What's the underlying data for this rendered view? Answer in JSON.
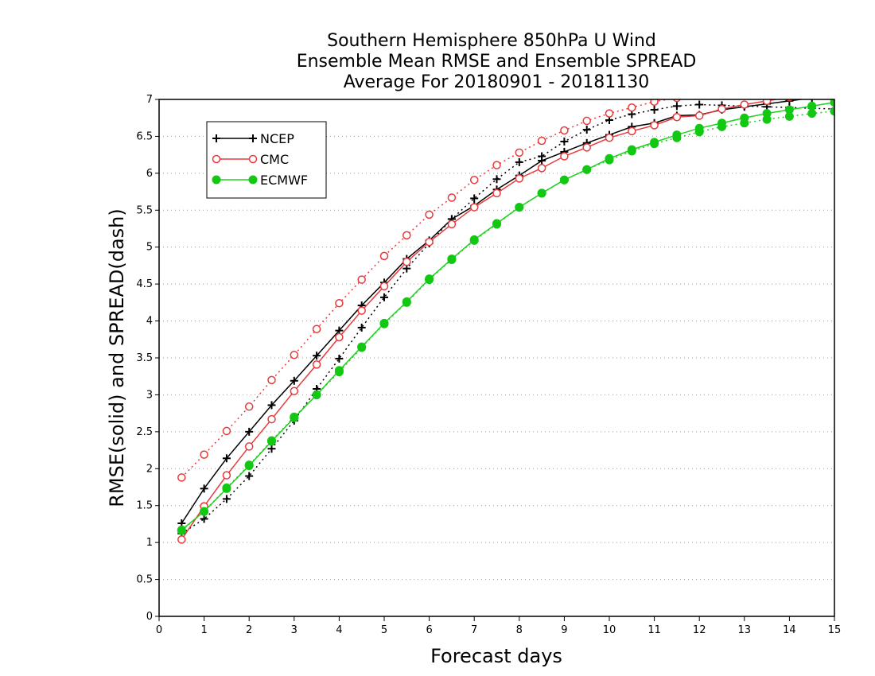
{
  "chart_data": {
    "type": "line",
    "title_lines": [
      "Southern Hemisphere 850hPa U Wind",
      "Ensemble Mean RMSE and Ensemble SPREAD",
      "Average For 20180901 - 20181130"
    ],
    "xlabel": "Forecast days",
    "ylabel": "RMSE(solid) and SPREAD(dash)",
    "xlim": [
      0,
      15
    ],
    "ylim": [
      0,
      7
    ],
    "x_ticks": [
      "0",
      "1",
      "2",
      "3",
      "4",
      "5",
      "6",
      "7",
      "8",
      "9",
      "10",
      "11",
      "12",
      "13",
      "14",
      "15"
    ],
    "y_ticks": [
      "0",
      "0.5",
      "1",
      "1.5",
      "2",
      "2.5",
      "3",
      "3.5",
      "4",
      "4.5",
      "5",
      "5.5",
      "6",
      "6.5",
      "7"
    ],
    "grid": "horizontal dotted",
    "legend_position": "top-left",
    "x": [
      0.5,
      1,
      1.5,
      2,
      2.5,
      3,
      3.5,
      4,
      4.5,
      5,
      5.5,
      6,
      6.5,
      7,
      7.5,
      8,
      8.5,
      9,
      9.5,
      10,
      10.5,
      11,
      11.5,
      12,
      12.5,
      13,
      13.5,
      14,
      14.5,
      15
    ],
    "series": [
      {
        "name": "NCEP",
        "color": "#000000",
        "marker": "plus",
        "rmse": [
          1.26,
          1.73,
          2.14,
          2.5,
          2.86,
          3.19,
          3.53,
          3.87,
          4.21,
          4.52,
          4.84,
          5.09,
          5.38,
          5.56,
          5.78,
          5.97,
          6.17,
          6.29,
          6.41,
          6.52,
          6.63,
          6.68,
          6.78,
          6.79,
          6.86,
          6.9,
          6.94,
          6.98,
          7.02,
          7.05
        ],
        "spread": [
          1.12,
          1.32,
          1.59,
          1.9,
          2.27,
          2.65,
          3.08,
          3.49,
          3.91,
          4.32,
          4.71,
          5.05,
          5.38,
          5.66,
          5.92,
          6.15,
          6.23,
          6.43,
          6.59,
          6.72,
          6.8,
          6.86,
          6.91,
          6.93,
          6.92,
          6.91,
          6.9,
          6.89,
          6.88,
          6.87
        ]
      },
      {
        "name": "CMC",
        "color": "#e8393b",
        "marker": "open-circle",
        "rmse": [
          1.04,
          1.49,
          1.91,
          2.3,
          2.67,
          3.05,
          3.41,
          3.78,
          4.14,
          4.47,
          4.8,
          5.07,
          5.31,
          5.54,
          5.73,
          5.93,
          6.07,
          6.23,
          6.35,
          6.48,
          6.57,
          6.65,
          6.76,
          6.78,
          6.87,
          6.93,
          6.98,
          7.03,
          7.08,
          7.12
        ],
        "spread": [
          1.88,
          2.19,
          2.51,
          2.84,
          3.2,
          3.54,
          3.89,
          4.24,
          4.56,
          4.88,
          5.16,
          5.44,
          5.67,
          5.91,
          6.11,
          6.28,
          6.44,
          6.58,
          6.71,
          6.81,
          6.89,
          6.97,
          7.02,
          7.06,
          7.09,
          7.1,
          7.1,
          7.09,
          7.08,
          7.07
        ]
      },
      {
        "name": "ECMWF",
        "color": "#1fd11f",
        "marker": "filled-circle",
        "rmse": [
          1.17,
          1.42,
          1.73,
          2.04,
          2.37,
          2.69,
          3.0,
          3.33,
          3.65,
          3.97,
          4.26,
          4.57,
          4.84,
          5.1,
          5.32,
          5.54,
          5.73,
          5.91,
          6.05,
          6.2,
          6.32,
          6.42,
          6.52,
          6.61,
          6.68,
          6.75,
          6.81,
          6.86,
          6.91,
          6.96
        ],
        "spread": [
          1.16,
          1.42,
          1.74,
          2.05,
          2.38,
          2.7,
          3.0,
          3.31,
          3.64,
          3.96,
          4.25,
          4.56,
          4.83,
          5.09,
          5.31,
          5.54,
          5.73,
          5.91,
          6.05,
          6.18,
          6.3,
          6.4,
          6.48,
          6.56,
          6.63,
          6.68,
          6.73,
          6.77,
          6.81,
          6.84
        ]
      }
    ]
  }
}
